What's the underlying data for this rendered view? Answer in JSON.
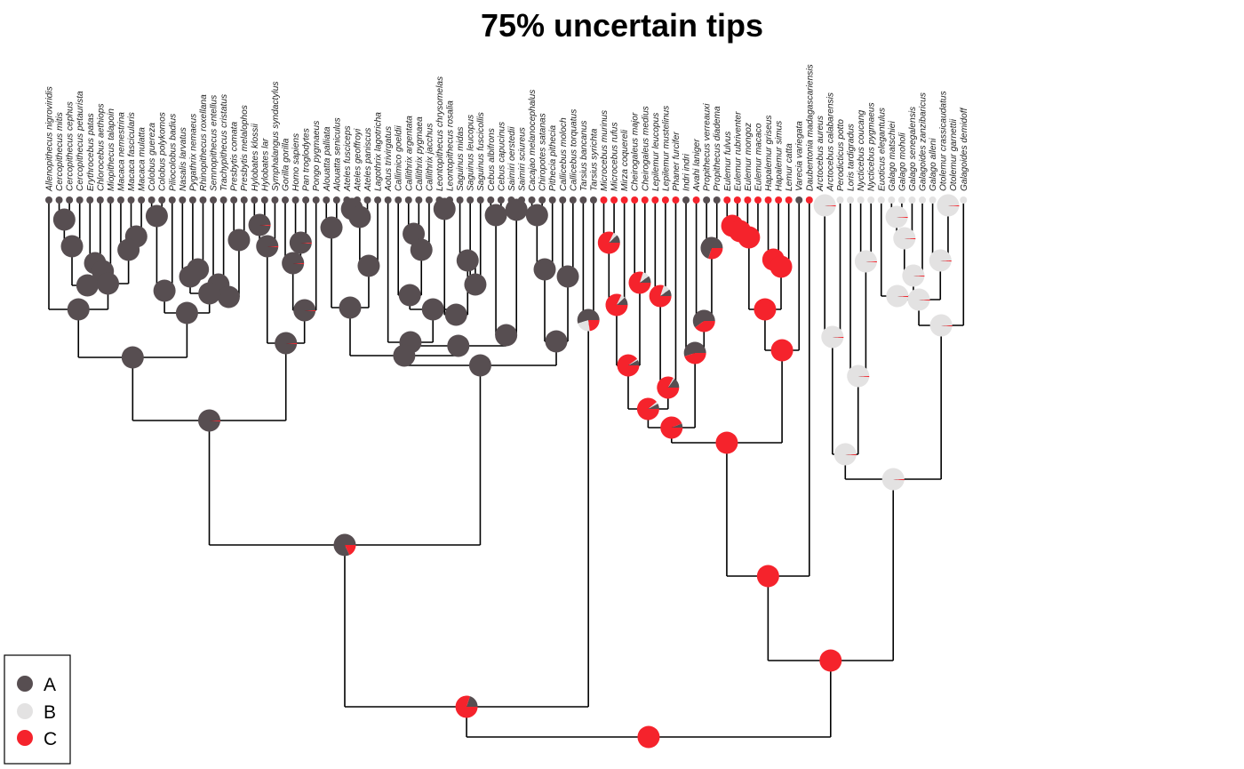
{
  "title": "75% uncertain tips",
  "states": [
    {
      "name": "A",
      "color": "#574e51"
    },
    {
      "name": "B",
      "color": "#e3e2e2"
    },
    {
      "name": "C",
      "color": "#f5232c"
    }
  ],
  "legend": {
    "placement": "bottom-left",
    "items": [
      "A",
      "B",
      "C"
    ]
  },
  "tips": [
    [
      "Allenopithecus nigroviridis",
      "A"
    ],
    [
      "Cercopithecus mitis",
      "A"
    ],
    [
      "Cercopithecus cephus",
      "A"
    ],
    [
      "Cercopithecus petaurista",
      "A"
    ],
    [
      "Erythrocebus patas",
      "A"
    ],
    [
      "Chlorocebus aethiops",
      "A"
    ],
    [
      "Miopithecus talapoin",
      "A"
    ],
    [
      "Macaca nemestrina",
      "A"
    ],
    [
      "Macaca fascicularis",
      "A"
    ],
    [
      "Macaca mulatta",
      "A"
    ],
    [
      "Colobus guereza",
      "A"
    ],
    [
      "Colobus polykomos",
      "A"
    ],
    [
      "Piliocolobus badius",
      "A"
    ],
    [
      "Nasalis larvatus",
      "A"
    ],
    [
      "Pygathrix nemaeus",
      "A"
    ],
    [
      "Rhinopithecus roxellana",
      "A"
    ],
    [
      "Semnopithecus entellus",
      "A"
    ],
    [
      "Trachypithecus cristatus",
      "A"
    ],
    [
      "Presbytis comata",
      "A"
    ],
    [
      "Presbytis melalophos",
      "A"
    ],
    [
      "Hylobates klossii",
      "A"
    ],
    [
      "Hylobates lar",
      "A"
    ],
    [
      "Symphalangus syndactylus",
      "A"
    ],
    [
      "Gorilla gorilla",
      "A"
    ],
    [
      "Homo sapiens",
      "A"
    ],
    [
      "Pan troglodytes",
      "A"
    ],
    [
      "Pongo pygmaeus",
      "A"
    ],
    [
      "Alouatta palliata",
      "A"
    ],
    [
      "Alouatta seniculus",
      "A"
    ],
    [
      "Ateles fusciceps",
      "A"
    ],
    [
      "Ateles geoffroyi",
      "A"
    ],
    [
      "Ateles paniscus",
      "A"
    ],
    [
      "Lagothrix lagotricha",
      "A"
    ],
    [
      "Aotus trivirgatus",
      "A"
    ],
    [
      "Callimico goeldii",
      "A"
    ],
    [
      "Callithrix argentata",
      "A"
    ],
    [
      "Callithrix pygmaea",
      "A"
    ],
    [
      "Callithrix jacchus",
      "A"
    ],
    [
      "Leontopithecus chrysomelas",
      "A"
    ],
    [
      "Leontopithecus rosalia",
      "A"
    ],
    [
      "Saguinus midas",
      "A"
    ],
    [
      "Saguinus leucopus",
      "A"
    ],
    [
      "Saguinus fuscicollis",
      "A"
    ],
    [
      "Cebus albifrons",
      "A"
    ],
    [
      "Cebus capucinus",
      "A"
    ],
    [
      "Saimiri oerstedii",
      "A"
    ],
    [
      "Saimiri sciureus",
      "A"
    ],
    [
      "Cacajao melanocephalus",
      "A"
    ],
    [
      "Chiropotes satanas",
      "A"
    ],
    [
      "Pithecia pithecia",
      "A"
    ],
    [
      "Callicebus moloch",
      "A"
    ],
    [
      "Callicebus torquatus",
      "A"
    ],
    [
      "Tarsius bancanus",
      "A"
    ],
    [
      "Tarsius syrichta",
      "A"
    ],
    [
      "Microcebus murinus",
      "C"
    ],
    [
      "Microcebus rufus",
      "C"
    ],
    [
      "Mirza coquereli",
      "C"
    ],
    [
      "Cheirogaleus major",
      "C"
    ],
    [
      "Cheirogaleus medius",
      "C"
    ],
    [
      "Lepilemur leucopus",
      "C"
    ],
    [
      "Lepilemur mustelinus",
      "C"
    ],
    [
      "Phaner furcifer",
      "C"
    ],
    [
      "Indri indri",
      "A"
    ],
    [
      "Avahi laniger",
      "C"
    ],
    [
      "Propithecus verreauxi",
      "A"
    ],
    [
      "Propithecus diadema",
      "A"
    ],
    [
      "Eulemur fulvus",
      "C"
    ],
    [
      "Eulemur rubriventer",
      "C"
    ],
    [
      "Eulemur mongoz",
      "C"
    ],
    [
      "Eulemur macaco",
      "C"
    ],
    [
      "Hapalemur griseus",
      "C"
    ],
    [
      "Hapalemur simus",
      "C"
    ],
    [
      "Lemur catta",
      "C"
    ],
    [
      "Varecia variegata",
      "A"
    ],
    [
      "Daubentonia madagascariensis",
      "C"
    ],
    [
      "Arctocebus aureus",
      "B"
    ],
    [
      "Arctocebus calabarensis",
      "B"
    ],
    [
      "Perodicticus potto",
      "B"
    ],
    [
      "Loris tardigradus",
      "B"
    ],
    [
      "Nycticebus coucang",
      "B"
    ],
    [
      "Nycticebus pygmaeus",
      "B"
    ],
    [
      "Euoticus elegantulus",
      "B"
    ],
    [
      "Galago matschiei",
      "B"
    ],
    [
      "Galago moholi",
      "B"
    ],
    [
      "Galago senegalensis",
      "B"
    ],
    [
      "Galagoides zanzibaricus",
      "B"
    ],
    [
      "Galago alleni",
      "B"
    ],
    [
      "Otolemur crassicaudatus",
      "B"
    ],
    [
      "Otolemur garnettii",
      "B"
    ],
    [
      "Galagoides demidoff",
      "B"
    ]
  ],
  "internal_nodes": [
    [
      "n1",
      [
        23,
        0.999,
        0
      ],
      [
        46,
        11,
        0
      ],
      0,
      1
    ],
    [
      "n2",
      [
        40,
        3,
        2
      ],
      [
        63,
        1,
        12
      ],
      0,
      1
    ],
    [
      "n3",
      [
        38,
        4,
        4
      ],
      [
        58,
        0,
        26
      ],
      0,
      1
    ],
    [
      "n4",
      [
        71,
        4,
        3
      ],
      [
        92,
        0,
        15
      ],
      0,
      1
    ],
    [
      "n5",
      [
        89,
        42
      ],
      [
        2,
        4,
        6
      ],
      [
        0,
        8,
        79
      ],
      0,
      1
    ],
    [
      "n6",
      [
        92,
        20
      ],
      [
        1,
        0,
        3
      ],
      [
        0,
        0,
        95
      ],
      0,
      1
    ],
    [
      "n7",
      [
        95,
        55
      ],
      [
        5,
        2,
        7
      ],
      [
        0,
        0,
        88
      ],
      0,
      1
    ],
    [
      "n8",
      [
        96,
        47
      ],
      [
        44,
        8,
        5
      ],
      [
        93,
        0,
        31
      ],
      0,
      1
    ],
    [
      "n9",
      [
        116,
        62
      ],
      [
        9,
        10,
        8
      ],
      [
        94,
        0,
        55
      ],
      0,
      1
    ],
    [
      "n10",
      [
        128,
        88
      ],
      [
        12,
        11,
        6
      ],
      [
        72,
        0,
        75
      ],
      0,
      1
    ],
    [
      "n11",
      [
        131,
        97
      ],
      [
        43,
        10,
        3
      ],
      [
        66,
        0,
        46
      ],
      0,
      1
    ],
    [
      "n12",
      [
        139,
        85
      ],
      [
        13,
        14,
        3
      ],
      [
        75,
        0,
        52
      ],
      0,
      1
    ],
    [
      "n13",
      [
        131,
        55
      ],
      [
        15,
        16,
        16
      ],
      [
        80,
        0,
        28
      ],
      0,
      1
    ],
    [
      "n14",
      [
        135,
        72
      ],
      [
        17,
        18,
        4
      ],
      [
        44,
        0,
        60
      ],
      0,
      1
    ],
    [
      "n15",
      [
        143,
        60
      ],
      [
        19,
        20,
        6
      ],
      [
        49,
        0,
        52
      ],
      0,
      1
    ],
    [
      "n16",
      [
        153,
        36
      ],
      [
        21,
        22,
        7
      ],
      [
        58,
        0,
        40
      ],
      0,
      1
    ],
    [
      "n17",
      [
        156,
        93
      ],
      [
        0,
        1,
        9
      ],
      [
        14,
        1,
        75
      ],
      0,
      1
    ],
    [
      "n18",
      [
        183,
        79
      ],
      [
        2,
        3,
        8
      ],
      [
        0,
        0,
        93
      ],
      0,
      1
    ],
    [
      "n19",
      [
        187,
        89
      ],
      [
        23,
        24,
        4
      ],
      [
        0,
        0,
        96
      ],
      0,
      1
    ],
    [
      "n20",
      [
        187,
        38
      ],
      [
        25,
        26,
        6
      ],
      [
        10,
        0,
        83
      ],
      0,
      1
    ],
    [
      "n21",
      [
        209,
        98
      ],
      [
        27,
        28,
        4
      ],
      [
        0,
        0,
        98
      ],
      0,
      1
    ]
  ]
}
